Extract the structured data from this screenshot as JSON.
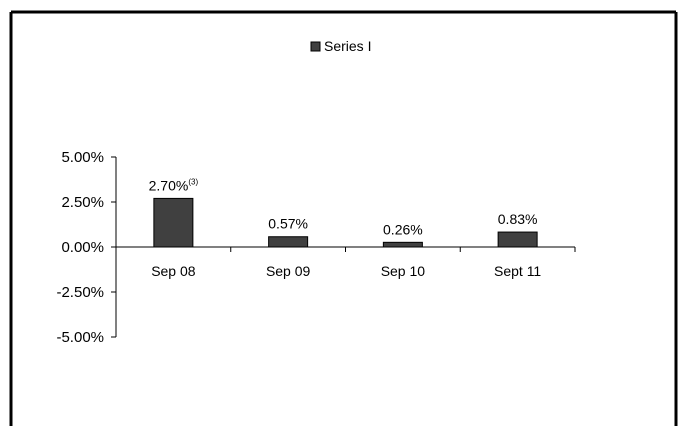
{
  "chart_data": {
    "type": "bar",
    "categories": [
      "Sep 08",
      "Sep 09",
      "Sep 10",
      "Sept 11"
    ],
    "series": [
      {
        "name": "Series I",
        "values": [
          2.7,
          0.57,
          0.26,
          0.83
        ]
      }
    ],
    "data_labels": [
      "2.70%",
      "0.57%",
      "0.26%",
      "0.83%"
    ],
    "data_label_notes": [
      "(3)",
      "",
      "",
      ""
    ],
    "y_ticks": [
      5.0,
      2.5,
      0.0,
      -2.5,
      -5.0
    ],
    "y_tick_labels": [
      "5.00%",
      "2.50%",
      "0.00%",
      "-2.50%",
      "-5.00%"
    ],
    "ylim": [
      -5,
      5
    ],
    "legend_position": "top",
    "grid": false,
    "bar_color": "#404040",
    "title": "",
    "xlabel": "",
    "ylabel": ""
  }
}
